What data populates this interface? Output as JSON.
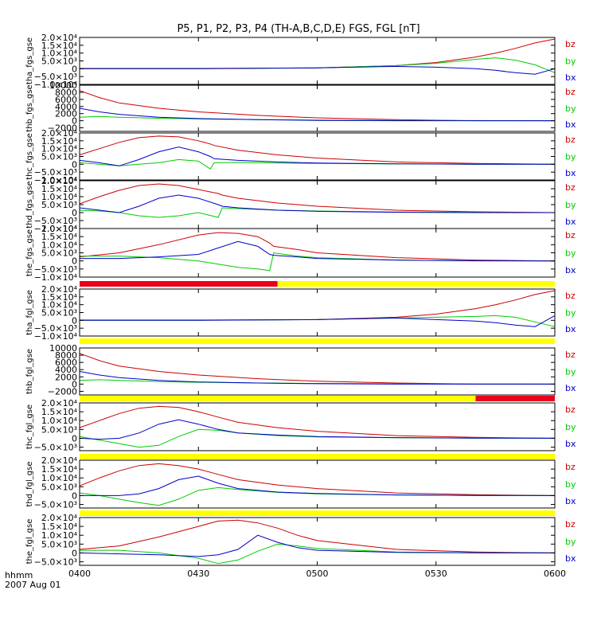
{
  "title": "P5, P1, P2, P3, P4 (TH-A,B,C,D,E) FGS, FGL [nT]",
  "time_axis": {
    "label_line1": "hhmm",
    "label_line2": "2007 Aug 01",
    "ticks": [
      "0400",
      "0430",
      "0500",
      "0530",
      "0600"
    ],
    "tick_values": [
      0,
      30,
      60,
      90,
      120
    ],
    "range_minutes": [
      0,
      120
    ]
  },
  "colors": {
    "bz": "#cc0000",
    "by": "#00cc00",
    "bx": "#0000cc",
    "flag_red": "#e8001c",
    "flag_yellow": "#ffff00",
    "axis": "#000000"
  },
  "chart_data": [
    {
      "type": "line",
      "ylabel": "tha_fgs_gse",
      "ylim": [
        -10000,
        20000
      ],
      "yticks": [
        "2.0×10⁴",
        "1.5×10⁴",
        "1.0×10⁴",
        "5.0×10³",
        "0",
        "−5.0×10³",
        "−1.0×10⁴"
      ],
      "ytick_values": [
        20000,
        15000,
        10000,
        5000,
        0,
        -5000,
        -10000
      ],
      "legend": [
        "bz",
        "by",
        "bx"
      ],
      "x": [
        0,
        30,
        60,
        80,
        90,
        100,
        105,
        110,
        115,
        120
      ],
      "series": [
        {
          "name": "bz",
          "values": [
            200,
            200,
            500,
            2000,
            4000,
            7500,
            10000,
            13000,
            16500,
            19000
          ]
        },
        {
          "name": "by",
          "values": [
            0,
            50,
            500,
            2000,
            3500,
            6000,
            7000,
            5500,
            2500,
            -2500
          ]
        },
        {
          "name": "bx",
          "values": [
            0,
            0,
            500,
            1500,
            1000,
            0,
            -1000,
            -2500,
            -3500,
            0
          ]
        }
      ]
    },
    {
      "type": "line",
      "ylabel": "thb_fgs_gse",
      "ylim": [
        -3000,
        10000
      ],
      "yticks": [
        "10000",
        "8000",
        "6000",
        "4000",
        "2000",
        "0",
        "−2000"
      ],
      "ytick_values": [
        10000,
        8000,
        6000,
        4000,
        2000,
        0,
        -2000
      ],
      "legend": [
        "bz",
        "by",
        "bx"
      ],
      "x": [
        0,
        5,
        10,
        20,
        30,
        45,
        60,
        80,
        100,
        120
      ],
      "series": [
        {
          "name": "bz",
          "values": [
            8500,
            6500,
            5000,
            3500,
            2500,
            1500,
            800,
            300,
            0,
            0
          ]
        },
        {
          "name": "by",
          "values": [
            1000,
            1200,
            1000,
            700,
            500,
            300,
            200,
            100,
            50,
            0
          ]
        },
        {
          "name": "bx",
          "values": [
            3500,
            2500,
            1800,
            1000,
            600,
            300,
            100,
            0,
            0,
            0
          ]
        }
      ]
    },
    {
      "type": "line",
      "ylabel": "thc_fgs_gse",
      "ylim": [
        -10000,
        20000
      ],
      "yticks": [
        "2.0×10⁴",
        "1.5×10⁴",
        "1.0×10⁴",
        "5.0×10³",
        "0",
        "−5.0×10³",
        "−1.0×10⁴"
      ],
      "ytick_values": [
        20000,
        15000,
        10000,
        5000,
        0,
        -5000,
        -10000
      ],
      "legend": [
        "bz",
        "by",
        "bx"
      ],
      "x": [
        0,
        5,
        10,
        15,
        20,
        25,
        30,
        33,
        34,
        40,
        50,
        60,
        80,
        100,
        120
      ],
      "series": [
        {
          "name": "bz",
          "values": [
            6000,
            10000,
            14000,
            17000,
            18000,
            17500,
            15000,
            13000,
            12000,
            9000,
            6000,
            4000,
            1500,
            500,
            0
          ]
        },
        {
          "name": "by",
          "values": [
            1000,
            0,
            -1000,
            0,
            1000,
            3000,
            2000,
            -3000,
            1000,
            1200,
            800,
            500,
            200,
            50,
            0
          ]
        },
        {
          "name": "bx",
          "values": [
            2500,
            1000,
            -1000,
            3000,
            8000,
            11000,
            8000,
            5000,
            3500,
            2500,
            1500,
            800,
            300,
            50,
            0
          ]
        }
      ]
    },
    {
      "type": "line",
      "ylabel": "thd_fgs_gse",
      "ylim": [
        -10000,
        20000
      ],
      "yticks": [
        "2.0×10⁴",
        "1.5×10⁴",
        "1.0×10⁴",
        "5.0×10³",
        "0",
        "−5.0×10³",
        "−1.0×10⁴"
      ],
      "ytick_values": [
        20000,
        15000,
        10000,
        5000,
        0,
        -5000,
        -10000
      ],
      "legend": [
        "bz",
        "by",
        "bx"
      ],
      "x": [
        0,
        5,
        10,
        15,
        20,
        25,
        30,
        35,
        36,
        40,
        50,
        60,
        80,
        100,
        120
      ],
      "series": [
        {
          "name": "bz",
          "values": [
            5500,
            10000,
            14000,
            17000,
            18000,
            17000,
            14500,
            12000,
            11000,
            9000,
            6000,
            4000,
            1500,
            500,
            0
          ]
        },
        {
          "name": "by",
          "values": [
            1500,
            1000,
            0,
            -2000,
            -3000,
            -2000,
            0,
            -3000,
            3000,
            2500,
            1500,
            1000,
            400,
            100,
            0
          ]
        },
        {
          "name": "bx",
          "values": [
            3000,
            1500,
            0,
            4000,
            9000,
            11000,
            9000,
            5000,
            4000,
            3000,
            1500,
            800,
            200,
            0,
            0
          ]
        }
      ]
    },
    {
      "type": "line",
      "ylabel": "the_fgs_gse",
      "ylim": [
        -10000,
        20000
      ],
      "yticks": [
        "2.0×10⁴",
        "1.5×10⁴",
        "1.0×10⁴",
        "5.0×10³",
        "0",
        "−5.0×10³",
        "−1.0×10⁴"
      ],
      "ytick_values": [
        20000,
        15000,
        10000,
        5000,
        0,
        -5000,
        -10000
      ],
      "legend": [
        "bz",
        "by",
        "bx"
      ],
      "x": [
        0,
        10,
        20,
        30,
        35,
        40,
        45,
        48,
        49,
        55,
        60,
        80,
        100,
        120
      ],
      "series": [
        {
          "name": "bz",
          "values": [
            2500,
            5000,
            10000,
            16000,
            17500,
            17000,
            15000,
            11000,
            9000,
            7000,
            5000,
            2000,
            500,
            0
          ]
        },
        {
          "name": "by",
          "values": [
            3000,
            3000,
            2000,
            0,
            -2000,
            -4000,
            -5000,
            -6000,
            5000,
            3000,
            2000,
            500,
            100,
            0
          ]
        },
        {
          "name": "bx",
          "values": [
            1500,
            1500,
            2500,
            4000,
            8000,
            12000,
            9000,
            4000,
            3500,
            2500,
            1500,
            500,
            50,
            0
          ]
        }
      ]
    },
    {
      "type": "line",
      "ylabel": "tha_fgl_gse",
      "ylim": [
        -10000,
        20000
      ],
      "yticks": [
        "2.0×10⁴",
        "1.5×10⁴",
        "1.0×10⁴",
        "5.0×10³",
        "0",
        "−5.0×10³",
        "−1.0×10⁴"
      ],
      "ytick_values": [
        20000,
        15000,
        10000,
        5000,
        0,
        -5000,
        -10000
      ],
      "legend": [
        "bz",
        "by",
        "bx"
      ],
      "x": [
        0,
        30,
        60,
        80,
        90,
        100,
        105,
        110,
        115,
        120
      ],
      "series": [
        {
          "name": "bz",
          "values": [
            200,
            200,
            500,
            2000,
            4000,
            7500,
            10000,
            13000,
            16500,
            19000
          ]
        },
        {
          "name": "by",
          "values": [
            0,
            50,
            500,
            1500,
            2000,
            2500,
            3000,
            2000,
            -1000,
            -4000
          ]
        },
        {
          "name": "bx",
          "values": [
            0,
            0,
            500,
            1500,
            500,
            -500,
            -1500,
            -3000,
            -4000,
            3000
          ]
        }
      ]
    },
    {
      "type": "line",
      "ylabel": "thb_fgl_gse",
      "ylim": [
        -3000,
        10000
      ],
      "yticks": [
        "10000",
        "8000",
        "6000",
        "4000",
        "2000",
        "0",
        "−2000"
      ],
      "ytick_values": [
        10000,
        8000,
        6000,
        4000,
        2000,
        0,
        -2000
      ],
      "legend": [
        "bz",
        "by",
        "bx"
      ],
      "x": [
        0,
        5,
        10,
        20,
        30,
        45,
        60,
        80,
        100,
        120
      ],
      "series": [
        {
          "name": "bz",
          "values": [
            8500,
            6500,
            5000,
            3500,
            2500,
            1500,
            800,
            300,
            0,
            0
          ]
        },
        {
          "name": "by",
          "values": [
            1000,
            1200,
            1000,
            700,
            500,
            300,
            200,
            100,
            50,
            0
          ]
        },
        {
          "name": "bx",
          "values": [
            3500,
            2500,
            1800,
            1000,
            600,
            300,
            100,
            0,
            0,
            0
          ]
        }
      ]
    },
    {
      "type": "line",
      "ylabel": "thc_fgl_gse",
      "ylim": [
        -7000,
        20000
      ],
      "yticks": [
        "2.0×10⁴",
        "1.5×10⁴",
        "1.0×10⁴",
        "5.0×10³",
        "0",
        "−5.0×10³"
      ],
      "ytick_values": [
        20000,
        15000,
        10000,
        5000,
        0,
        -5000
      ],
      "legend": [
        "bz",
        "by",
        "bx"
      ],
      "x": [
        0,
        5,
        10,
        15,
        20,
        25,
        30,
        35,
        40,
        50,
        60,
        80,
        100,
        120
      ],
      "series": [
        {
          "name": "bz",
          "values": [
            6000,
            10000,
            14000,
            17000,
            18000,
            17500,
            15000,
            12000,
            9000,
            6000,
            4000,
            1500,
            500,
            0
          ]
        },
        {
          "name": "by",
          "values": [
            1000,
            -1000,
            -3000,
            -5000,
            -4000,
            1000,
            5000,
            4500,
            3000,
            1500,
            800,
            300,
            100,
            0
          ]
        },
        {
          "name": "bx",
          "values": [
            0,
            -500,
            0,
            3000,
            8000,
            10500,
            8000,
            5000,
            3000,
            1800,
            1000,
            400,
            100,
            0
          ]
        }
      ]
    },
    {
      "type": "line",
      "ylabel": "thd_fgl_gse",
      "ylim": [
        -7000,
        20000
      ],
      "yticks": [
        "2.0×10⁴",
        "1.5×10⁴",
        "1.0×10⁴",
        "5.0×10³",
        "0",
        "−5.0×10³"
      ],
      "ytick_values": [
        20000,
        15000,
        10000,
        5000,
        0,
        -5000
      ],
      "legend": [
        "bz",
        "by",
        "bx"
      ],
      "x": [
        0,
        5,
        10,
        15,
        20,
        25,
        30,
        35,
        40,
        50,
        60,
        80,
        100,
        120
      ],
      "series": [
        {
          "name": "bz",
          "values": [
            5500,
            10000,
            14000,
            17000,
            18000,
            17000,
            15000,
            12000,
            9000,
            6000,
            4000,
            1500,
            500,
            0
          ]
        },
        {
          "name": "by",
          "values": [
            1500,
            0,
            -2000,
            -4000,
            -5500,
            -2000,
            3000,
            4500,
            3500,
            1800,
            1000,
            400,
            100,
            0
          ]
        },
        {
          "name": "bx",
          "values": [
            0,
            0,
            0,
            1000,
            4000,
            9000,
            11000,
            7000,
            4000,
            2000,
            1200,
            400,
            100,
            0
          ]
        }
      ]
    },
    {
      "type": "line",
      "ylabel": "the_fgl_gse",
      "ylim": [
        -7000,
        20000
      ],
      "yticks": [
        "2.0×10⁴",
        "1.5×10⁴",
        "1.0×10⁴",
        "5.0×10³",
        "0",
        "−5.0×10³"
      ],
      "ytick_values": [
        20000,
        15000,
        10000,
        5000,
        0,
        -5000
      ],
      "legend": [
        "bz",
        "by",
        "bx"
      ],
      "x": [
        0,
        10,
        20,
        30,
        35,
        40,
        45,
        50,
        55,
        60,
        80,
        100,
        120
      ],
      "series": [
        {
          "name": "bz",
          "values": [
            2000,
            4000,
            9000,
            15000,
            18000,
            18500,
            17000,
            14000,
            10000,
            7000,
            2000,
            500,
            0
          ]
        },
        {
          "name": "by",
          "values": [
            1500,
            1500,
            0,
            -3000,
            -6000,
            -4000,
            1000,
            5000,
            4000,
            2500,
            500,
            100,
            0
          ]
        },
        {
          "name": "bx",
          "values": [
            0,
            -500,
            -1000,
            -2000,
            -1000,
            2000,
            10000,
            6000,
            3000,
            1500,
            300,
            50,
            0
          ]
        }
      ]
    }
  ],
  "flag_bars": [
    {
      "after_panel": 4,
      "segments": [
        {
          "start": 0,
          "end": 50,
          "color": "flag_red"
        },
        {
          "start": 50,
          "end": 120,
          "color": "flag_yellow"
        }
      ]
    },
    {
      "after_panel": 5,
      "segments": [
        {
          "start": 0,
          "end": 120,
          "color": "flag_yellow"
        }
      ]
    },
    {
      "after_panel": 6,
      "segments": [
        {
          "start": 0,
          "end": 100,
          "color": "flag_yellow"
        },
        {
          "start": 100,
          "end": 120,
          "color": "flag_red"
        }
      ]
    },
    {
      "after_panel": 7,
      "segments": [
        {
          "start": 0,
          "end": 120,
          "color": "flag_yellow"
        }
      ]
    },
    {
      "after_panel": 8,
      "segments": [
        {
          "start": 0,
          "end": 120,
          "color": "flag_yellow"
        }
      ]
    }
  ]
}
